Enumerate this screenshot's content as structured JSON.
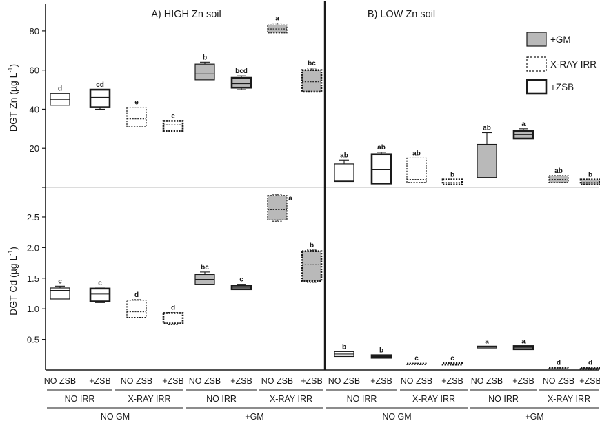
{
  "chart_data": {
    "type": "box",
    "panels": [
      {
        "key": "A",
        "title": "A) HIGH Zn soil"
      },
      {
        "key": "B",
        "title": "B) LOW Zn soil"
      }
    ],
    "ylabel_top": "DGT Zn (µg L",
    "ylabel_bottom": "DGT Cd (µg L",
    "ylabel_sup": "-1",
    "ylabel_close": ")",
    "zn_ticks": [
      "20",
      "40",
      "60",
      "80"
    ],
    "cd_ticks": [
      "0.5",
      "1.0",
      "1.5",
      "2.0",
      "2.5"
    ],
    "zn_ylim": [
      0,
      93
    ],
    "cd_ylim": [
      0,
      2.95
    ],
    "legend": [
      {
        "key": "gm",
        "label": "+GM"
      },
      {
        "key": "xray",
        "label": "X-RAY IRR"
      },
      {
        "key": "zsb",
        "label": "+ZSB"
      }
    ],
    "x_level1": [
      "NO ZSB",
      "+ZSB",
      "NO ZSB",
      "+ZSB",
      "NO ZSB",
      "+ZSB",
      "NO ZSB",
      "+ZSB"
    ],
    "x_level2": [
      "NO IRR",
      "X-RAY IRR",
      "NO IRR",
      "X-RAY IRR"
    ],
    "x_level3": [
      "NO GM",
      "+GM"
    ],
    "zn_series": {
      "A": [
        {
          "gm": false,
          "xray": false,
          "zsb": false,
          "q1": 42,
          "median": 45,
          "q3": 48,
          "min": 42,
          "max": 48,
          "sig": "d"
        },
        {
          "gm": false,
          "xray": false,
          "zsb": true,
          "q1": 41,
          "median": 46,
          "q3": 50,
          "min": 40,
          "max": 50,
          "sig": "cd"
        },
        {
          "gm": false,
          "xray": true,
          "zsb": false,
          "q1": 31,
          "median": 35,
          "q3": 41,
          "min": 31,
          "max": 41,
          "sig": "e"
        },
        {
          "gm": false,
          "xray": true,
          "zsb": true,
          "q1": 29,
          "median": 32,
          "q3": 34,
          "min": 29,
          "max": 34,
          "sig": "e"
        },
        {
          "gm": true,
          "xray": false,
          "zsb": false,
          "q1": 55,
          "median": 58,
          "q3": 63,
          "min": 55,
          "max": 64,
          "sig": "b"
        },
        {
          "gm": true,
          "xray": false,
          "zsb": true,
          "q1": 51,
          "median": 53,
          "q3": 56,
          "min": 50,
          "max": 57,
          "sig": "bcd"
        },
        {
          "gm": true,
          "xray": true,
          "zsb": false,
          "q1": 79,
          "median": 81,
          "q3": 83,
          "min": 79,
          "max": 84,
          "sig": "a"
        },
        {
          "gm": true,
          "xray": true,
          "zsb": true,
          "q1": 49,
          "median": 54,
          "q3": 60,
          "min": 49,
          "max": 61,
          "sig": "bc"
        }
      ],
      "B": [
        {
          "gm": false,
          "xray": false,
          "zsb": false,
          "q1": 3,
          "median": 3.5,
          "q3": 12,
          "min": 3,
          "max": 14,
          "sig": "ab"
        },
        {
          "gm": false,
          "xray": false,
          "zsb": true,
          "q1": 2,
          "median": 9,
          "q3": 17,
          "min": 2,
          "max": 18,
          "sig": "ab"
        },
        {
          "gm": false,
          "xray": true,
          "zsb": false,
          "q1": 2.5,
          "median": 4,
          "q3": 15,
          "min": 2.5,
          "max": 15,
          "sig": "ab"
        },
        {
          "gm": false,
          "xray": true,
          "zsb": true,
          "q1": 1.5,
          "median": 2.5,
          "q3": 4,
          "min": 1.5,
          "max": 4,
          "sig": "b"
        },
        {
          "gm": true,
          "xray": false,
          "zsb": false,
          "q1": 5,
          "median": 5,
          "q3": 22,
          "min": 5,
          "max": 28,
          "sig": "ab"
        },
        {
          "gm": true,
          "xray": false,
          "zsb": true,
          "q1": 25,
          "median": 27,
          "q3": 29,
          "min": 25,
          "max": 30,
          "sig": "a"
        },
        {
          "gm": true,
          "xray": true,
          "zsb": false,
          "q1": 2.5,
          "median": 4,
          "q3": 6,
          "min": 2.5,
          "max": 6,
          "sig": "ab"
        },
        {
          "gm": true,
          "xray": true,
          "zsb": true,
          "q1": 1.5,
          "median": 2.5,
          "q3": 4,
          "min": 1.5,
          "max": 4,
          "sig": "b"
        }
      ]
    },
    "cd_series": {
      "A": [
        {
          "gm": false,
          "xray": false,
          "zsb": false,
          "q1": 1.16,
          "median": 1.3,
          "q3": 1.34,
          "min": 1.16,
          "max": 1.37,
          "sig": "c"
        },
        {
          "gm": false,
          "xray": false,
          "zsb": true,
          "q1": 1.12,
          "median": 1.24,
          "q3": 1.33,
          "min": 1.1,
          "max": 1.34,
          "sig": "c"
        },
        {
          "gm": false,
          "xray": true,
          "zsb": false,
          "q1": 0.86,
          "median": 0.95,
          "q3": 1.14,
          "min": 0.86,
          "max": 1.15,
          "sig": "d"
        },
        {
          "gm": false,
          "xray": true,
          "zsb": true,
          "q1": 0.76,
          "median": 0.85,
          "q3": 0.93,
          "min": 0.74,
          "max": 0.94,
          "sig": "d"
        },
        {
          "gm": true,
          "xray": false,
          "zsb": false,
          "q1": 1.4,
          "median": 1.48,
          "q3": 1.56,
          "min": 1.4,
          "max": 1.6,
          "sig": "bc"
        },
        {
          "gm": true,
          "xray": false,
          "zsb": true,
          "q1": 1.32,
          "median": 1.35,
          "q3": 1.38,
          "min": 1.32,
          "max": 1.4,
          "sig": "c"
        },
        {
          "gm": true,
          "xray": true,
          "zsb": false,
          "q1": 2.45,
          "median": 2.62,
          "q3": 2.85,
          "min": 2.43,
          "max": 2.87,
          "sig": "a"
        },
        {
          "gm": true,
          "xray": true,
          "zsb": true,
          "q1": 1.45,
          "median": 1.72,
          "q3": 1.94,
          "min": 1.43,
          "max": 1.96,
          "sig": "b"
        }
      ],
      "B": [
        {
          "gm": false,
          "xray": false,
          "zsb": false,
          "q1": 0.22,
          "median": 0.26,
          "q3": 0.3,
          "min": 0.22,
          "max": 0.3,
          "sig": "b"
        },
        {
          "gm": false,
          "xray": false,
          "zsb": true,
          "q1": 0.2,
          "median": 0.22,
          "q3": 0.24,
          "min": 0.2,
          "max": 0.24,
          "sig": "b"
        },
        {
          "gm": false,
          "xray": true,
          "zsb": false,
          "q1": 0.09,
          "median": 0.1,
          "q3": 0.11,
          "min": 0.09,
          "max": 0.11,
          "sig": "c"
        },
        {
          "gm": false,
          "xray": true,
          "zsb": true,
          "q1": 0.09,
          "median": 0.1,
          "q3": 0.11,
          "min": 0.09,
          "max": 0.11,
          "sig": "c"
        },
        {
          "gm": true,
          "xray": false,
          "zsb": false,
          "q1": 0.36,
          "median": 0.38,
          "q3": 0.39,
          "min": 0.36,
          "max": 0.39,
          "sig": "a"
        },
        {
          "gm": true,
          "xray": false,
          "zsb": true,
          "q1": 0.34,
          "median": 0.37,
          "q3": 0.39,
          "min": 0.34,
          "max": 0.39,
          "sig": "a"
        },
        {
          "gm": true,
          "xray": true,
          "zsb": false,
          "q1": 0.02,
          "median": 0.03,
          "q3": 0.04,
          "min": 0.02,
          "max": 0.04,
          "sig": "d"
        },
        {
          "gm": true,
          "xray": true,
          "zsb": true,
          "q1": 0.02,
          "median": 0.03,
          "q3": 0.04,
          "min": 0.02,
          "max": 0.04,
          "sig": "d"
        }
      ]
    },
    "colors": {
      "fill_gm": "#b9b9b9",
      "fill_none": "#ffffff",
      "stroke": "#1a1a1a",
      "grid": "#c8c8c8",
      "axis": "#1a1a1a"
    }
  }
}
